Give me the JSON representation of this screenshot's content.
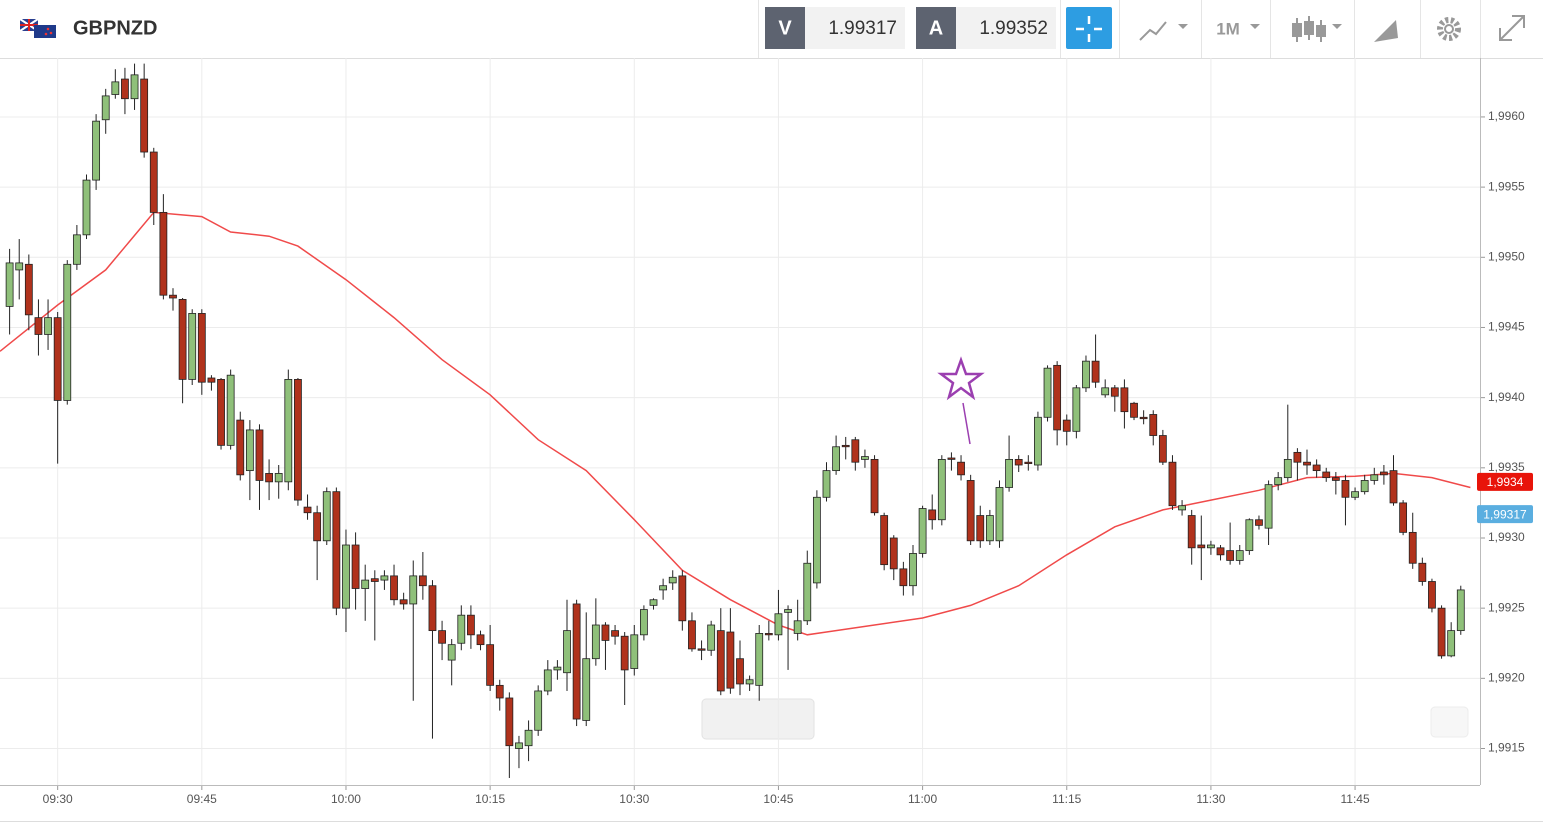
{
  "header": {
    "symbol": "GBPNZD",
    "bid_label": "V",
    "bid": "1.99317",
    "ask_label": "A",
    "ask": "1.99352",
    "interval": "1M"
  },
  "chart_data": {
    "type": "candlestick",
    "xlim": [
      564,
      718
    ],
    "ylim": [
      1.99124,
      1.99642
    ],
    "xticks": [
      {
        "value": 570,
        "label": "09:30"
      },
      {
        "value": 585,
        "label": "09:45"
      },
      {
        "value": 600,
        "label": "10:00"
      },
      {
        "value": 615,
        "label": "10:15"
      },
      {
        "value": 630,
        "label": "10:30"
      },
      {
        "value": 645,
        "label": "10:45"
      },
      {
        "value": 660,
        "label": "11:00"
      },
      {
        "value": 675,
        "label": "11:15"
      },
      {
        "value": 690,
        "label": "11:30"
      },
      {
        "value": 705,
        "label": "11:45"
      }
    ],
    "yticks": [
      {
        "value": 1.9915,
        "label": "1,9915"
      },
      {
        "value": 1.992,
        "label": "1,9920"
      },
      {
        "value": 1.9925,
        "label": "1,9925"
      },
      {
        "value": 1.993,
        "label": "1,9930"
      },
      {
        "value": 1.9935,
        "label": "1,9935"
      },
      {
        "value": 1.994,
        "label": "1,9940"
      },
      {
        "value": 1.9945,
        "label": "1,9945"
      },
      {
        "value": 1.995,
        "label": "1,9950"
      },
      {
        "value": 1.9955,
        "label": "1,9955"
      },
      {
        "value": 1.996,
        "label": "1,9960"
      }
    ],
    "grid": true,
    "up_color": "#8fc07a",
    "down_color": "#b0321c",
    "x": [
      565,
      566,
      567,
      568,
      569,
      570,
      571,
      572,
      573,
      574,
      575,
      576,
      577,
      578,
      579,
      580,
      581,
      582,
      583,
      584,
      585,
      586,
      587,
      588,
      589,
      590,
      591,
      592,
      593,
      594,
      595,
      596,
      597,
      598,
      599,
      600,
      601,
      602,
      603,
      604,
      605,
      606,
      607,
      608,
      609,
      610,
      611,
      612,
      613,
      614,
      615,
      616,
      617,
      618,
      619,
      620,
      621,
      622,
      623,
      624,
      625,
      626,
      627,
      628,
      629,
      630,
      631,
      632,
      633,
      634,
      635,
      636,
      637,
      638,
      639,
      640,
      641,
      642,
      643,
      644,
      645,
      646,
      647,
      648,
      649,
      650,
      651,
      652,
      653,
      654,
      655,
      656,
      657,
      658,
      659,
      660,
      661,
      662,
      663,
      664,
      665,
      666,
      667,
      668,
      669,
      670,
      671,
      672,
      673,
      674,
      675,
      676,
      677,
      678,
      679,
      680,
      681,
      682,
      683,
      684,
      685,
      686,
      687,
      688,
      689,
      690,
      691,
      692,
      693,
      694,
      695,
      696,
      697,
      698,
      699,
      700,
      701,
      702,
      703,
      704,
      705,
      706,
      707,
      708,
      709,
      710,
      711,
      712,
      713,
      714,
      715,
      716
    ],
    "open": [
      1.99465,
      1.99491,
      1.99495,
      1.99457,
      1.99445,
      1.99457,
      1.99398,
      1.99495,
      1.99516,
      1.99555,
      1.99598,
      1.99616,
      1.99627,
      1.99613,
      1.99627,
      1.99575,
      1.99532,
      1.99473,
      1.9947,
      1.99413,
      1.9946,
      1.99414,
      1.99413,
      1.99366,
      1.99384,
      1.99348,
      1.99377,
      1.99346,
      1.9934,
      1.9934,
      1.99413,
      1.99322,
      1.99318,
      1.99298,
      1.99333,
      1.9925,
      1.99295,
      1.99264,
      1.99271,
      1.9927,
      1.99273,
      1.99256,
      1.99253,
      1.99273,
      1.99266,
      1.99234,
      1.99213,
      1.99225,
      1.99245,
      1.99231,
      1.99224,
      1.99195,
      1.99186,
      1.9915,
      1.99152,
      1.99163,
      1.99191,
      1.99206,
      1.99204,
      1.99253,
      1.9917,
      1.99214,
      1.99238,
      1.99234,
      1.9923,
      1.99207,
      1.99231,
      1.99252,
      1.99263,
      1.99268,
      1.99273,
      1.99241,
      1.99221,
      1.9922,
      1.99234,
      1.99233,
      1.99214,
      1.99196,
      1.99195,
      1.99232,
      1.99231,
      1.99247,
      1.99232,
      1.99241,
      1.99268,
      1.99329,
      1.99348,
      1.99366,
      1.9937,
      1.99356,
      1.99356,
      1.99316,
      1.993,
      1.99278,
      1.99266,
      1.99289,
      1.9932,
      1.99313,
      1.99357,
      1.99354,
      1.99341,
      1.99316,
      1.99298,
      1.99298,
      1.99336,
      1.99356,
      1.99354,
      1.99352,
      1.99386,
      1.99423,
      1.99384,
      1.99376,
      1.99407,
      1.99426,
      1.99402,
      1.99407,
      1.99407,
      1.99396,
      1.99386,
      1.99388,
      1.99373,
      1.99354,
      1.9932,
      1.99316,
      1.99295,
      1.99293,
      1.99293,
      1.99291,
      1.99284,
      1.99291,
      1.99313,
      1.99307,
      1.99338,
      1.99343,
      1.99361,
      1.99354,
      1.99352,
      1.99347,
      1.99343,
      1.99341,
      1.99329,
      1.99333,
      1.99341,
      1.99347,
      1.99348,
      1.99325,
      1.99304,
      1.99282,
      1.99269,
      1.9925,
      1.99216,
      1.99234
    ],
    "high": [
      1.99506,
      1.99513,
      1.99502,
      1.9947,
      1.9947,
      1.99461,
      1.99498,
      1.99523,
      1.99559,
      1.99602,
      1.9962,
      1.99634,
      1.99635,
      1.99638,
      1.99638,
      1.99578,
      1.99545,
      1.99478,
      1.99471,
      1.99463,
      1.99463,
      1.99416,
      1.99414,
      1.9942,
      1.9939,
      1.99384,
      1.99381,
      1.99356,
      1.99352,
      1.9942,
      1.99414,
      1.99331,
      1.99323,
      1.99336,
      1.99336,
      1.99306,
      1.99304,
      1.99281,
      1.99277,
      1.99277,
      1.99281,
      1.99261,
      1.99284,
      1.9929,
      1.9927,
      1.99241,
      1.99228,
      1.99252,
      1.99252,
      1.99234,
      1.99238,
      1.99199,
      1.9919,
      1.99159,
      1.9917,
      1.99195,
      1.99213,
      1.99213,
      1.99256,
      1.99256,
      1.99247,
      1.99257,
      1.9924,
      1.99238,
      1.99233,
      1.99238,
      1.99252,
      1.99257,
      1.99271,
      1.99277,
      1.99277,
      1.99247,
      1.99227,
      1.99241,
      1.9925,
      1.9925,
      1.99227,
      1.99202,
      1.99238,
      1.99241,
      1.99263,
      1.99252,
      1.99256,
      1.99291,
      1.99334,
      1.99354,
      1.99373,
      1.99372,
      1.99372,
      1.99363,
      1.99359,
      1.99318,
      1.99302,
      1.99283,
      1.99295,
      1.99323,
      1.99331,
      1.99359,
      1.99361,
      1.99359,
      1.99345,
      1.99323,
      1.9932,
      1.99341,
      1.99373,
      1.99359,
      1.99359,
      1.9939,
      1.99423,
      1.99426,
      1.99388,
      1.99409,
      1.9943,
      1.99445,
      1.99413,
      1.99409,
      1.99413,
      1.99397,
      1.99391,
      1.99391,
      1.99377,
      1.99359,
      1.99327,
      1.9932,
      1.99316,
      1.99298,
      1.99295,
      1.99311,
      1.99295,
      1.99314,
      1.99316,
      1.99341,
      1.99347,
      1.99395,
      1.99364,
      1.99363,
      1.99356,
      1.9935,
      1.99347,
      1.99345,
      1.99336,
      1.99345,
      1.9935,
      1.99352,
      1.99359,
      1.99327,
      1.99318,
      1.99286,
      1.99271,
      1.99252,
      1.9924,
      1.99266
    ],
    "low": [
      1.99445,
      1.9947,
      1.99448,
      1.9943,
      1.99434,
      1.99353,
      1.99395,
      1.99491,
      1.99513,
      1.99548,
      1.99588,
      1.99613,
      1.99602,
      1.99605,
      1.99571,
      1.99523,
      1.9947,
      1.99462,
      1.99396,
      1.99409,
      1.99402,
      1.99405,
      1.99363,
      1.99363,
      1.99341,
      1.99327,
      1.9932,
      1.99327,
      1.99328,
      1.99334,
      1.99323,
      1.99313,
      1.9927,
      1.99295,
      1.99245,
      1.99233,
      1.99249,
      1.99241,
      1.99227,
      1.99263,
      1.99252,
      1.99249,
      1.99184,
      1.99256,
      1.99157,
      1.99213,
      1.99195,
      1.9922,
      1.99221,
      1.9922,
      1.99191,
      1.99177,
      1.99129,
      1.99136,
      1.99141,
      1.99159,
      1.99188,
      1.99199,
      1.99191,
      1.99166,
      1.99166,
      1.99209,
      1.99206,
      1.99224,
      1.99181,
      1.99202,
      1.99227,
      1.99249,
      1.99256,
      1.99263,
      1.99234,
      1.99219,
      1.99213,
      1.99216,
      1.99188,
      1.99189,
      1.99188,
      1.99191,
      1.99184,
      1.99227,
      1.99227,
      1.99206,
      1.99227,
      1.99238,
      1.99264,
      1.99326,
      1.99345,
      1.99356,
      1.99348,
      1.9935,
      1.99316,
      1.99277,
      1.9927,
      1.99259,
      1.99259,
      1.99286,
      1.99306,
      1.99309,
      1.99348,
      1.99341,
      1.99295,
      1.99293,
      1.99295,
      1.99293,
      1.99333,
      1.99347,
      1.99348,
      1.99348,
      1.99383,
      1.99366,
      1.99366,
      1.99371,
      1.99404,
      1.99407,
      1.994,
      1.9939,
      1.99378,
      1.99384,
      1.99381,
      1.99366,
      1.99352,
      1.9932,
      1.99316,
      1.99281,
      1.9927,
      1.99288,
      1.99284,
      1.99281,
      1.99281,
      1.99288,
      1.99306,
      1.99295,
      1.99334,
      1.9934,
      1.99341,
      1.99345,
      1.99343,
      1.9934,
      1.99331,
      1.99309,
      1.99327,
      1.99331,
      1.99338,
      1.99338,
      1.99323,
      1.99302,
      1.99278,
      1.99266,
      1.99247,
      1.99214,
      1.99215,
      1.99231
    ],
    "close": [
      1.99496,
      1.99496,
      1.99459,
      1.99445,
      1.99457,
      1.99398,
      1.99495,
      1.99516,
      1.99555,
      1.99597,
      1.99615,
      1.99625,
      1.99613,
      1.9963,
      1.99575,
      1.99532,
      1.99473,
      1.99471,
      1.99413,
      1.9946,
      1.99411,
      1.99411,
      1.99366,
      1.99416,
      1.99345,
      1.99377,
      1.99341,
      1.9934,
      1.99346,
      1.99413,
      1.99327,
      1.99318,
      1.99298,
      1.99333,
      1.9925,
      1.99295,
      1.99264,
      1.9927,
      1.99269,
      1.99273,
      1.99256,
      1.99253,
      1.99273,
      1.99266,
      1.99234,
      1.99225,
      1.99224,
      1.99245,
      1.99231,
      1.99224,
      1.99195,
      1.99186,
      1.99152,
      1.99154,
      1.99163,
      1.99191,
      1.99206,
      1.99208,
      1.99234,
      1.99171,
      1.99214,
      1.99238,
      1.99227,
      1.9923,
      1.99206,
      1.99231,
      1.99249,
      1.99256,
      1.99266,
      1.99272,
      1.99241,
      1.99221,
      1.9922,
      1.99238,
      1.99191,
      1.99193,
      1.99196,
      1.99199,
      1.99232,
      1.99231,
      1.99246,
      1.99249,
      1.99241,
      1.99282,
      1.99329,
      1.99348,
      1.99365,
      1.99365,
      1.99354,
      1.99358,
      1.99318,
      1.99281,
      1.99278,
      1.99266,
      1.99289,
      1.99321,
      1.99313,
      1.99356,
      1.99356,
      1.99345,
      1.99298,
      1.99298,
      1.99316,
      1.99336,
      1.99356,
      1.99352,
      1.99353,
      1.99386,
      1.99421,
      1.99377,
      1.99376,
      1.99407,
      1.99426,
      1.99411,
      1.99407,
      1.99401,
      1.9939,
      1.99386,
      1.99385,
      1.99373,
      1.99354,
      1.99323,
      1.99323,
      1.99293,
      1.99293,
      1.99295,
      1.99288,
      1.99284,
      1.99291,
      1.99313,
      1.99309,
      1.99338,
      1.99343,
      1.99356,
      1.99354,
      1.99352,
      1.99348,
      1.99343,
      1.99341,
      1.99329,
      1.99333,
      1.99341,
      1.99345,
      1.99345,
      1.99325,
      1.99304,
      1.99282,
      1.99269,
      1.9925,
      1.99216,
      1.99234,
      1.99263
    ],
    "ma": {
      "color": "#f04a4a",
      "x": [
        564,
        570,
        575,
        580,
        585,
        588,
        592,
        595,
        600,
        605,
        610,
        615,
        620,
        625,
        630,
        635,
        640,
        645,
        648,
        650,
        655,
        660,
        665,
        670,
        675,
        680,
        685,
        690,
        695,
        700,
        705,
        709,
        713,
        717
      ],
      "values": [
        1.99433,
        1.99466,
        1.99491,
        1.99532,
        1.99529,
        1.99518,
        1.99515,
        1.99508,
        1.99484,
        1.99457,
        1.99427,
        1.99402,
        1.9937,
        1.99348,
        1.99313,
        1.99277,
        1.99256,
        1.99238,
        1.99231,
        1.99233,
        1.99238,
        1.99243,
        1.99252,
        1.99266,
        1.99288,
        1.99308,
        1.9932,
        1.99327,
        1.99334,
        1.99343,
        1.99344,
        1.99346,
        1.99343,
        1.99336
      ]
    },
    "markers": [
      {
        "value": 1.9934,
        "label": "1,9934",
        "color": "#e8140a"
      },
      {
        "value": 1.99317,
        "label": "1,99317",
        "color": "#5aaee0"
      }
    ]
  }
}
